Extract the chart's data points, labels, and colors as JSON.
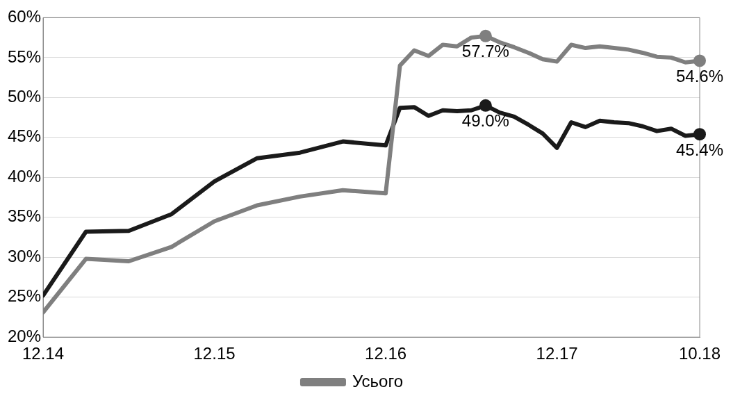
{
  "chart_data": {
    "type": "line",
    "x": [
      "2014-12",
      "2015-03",
      "2015-06",
      "2015-09",
      "2015-12",
      "2016-03",
      "2016-06",
      "2016-09",
      "2016-12",
      "2017-01",
      "2017-02",
      "2017-03",
      "2017-04",
      "2017-05",
      "2017-06",
      "2017-07",
      "2017-08",
      "2017-09",
      "2017-10",
      "2017-11",
      "2017-12",
      "2018-01",
      "2018-02",
      "2018-03",
      "2018-04",
      "2018-05",
      "2018-06",
      "2018-07",
      "2018-08",
      "2018-09",
      "2018-10"
    ],
    "series": [
      {
        "name": "Усього",
        "color": "#7f7f7f",
        "values": [
          23.1,
          29.8,
          29.5,
          31.3,
          34.5,
          36.5,
          37.6,
          38.4,
          38.0,
          54.0,
          55.9,
          55.2,
          56.6,
          56.4,
          57.5,
          57.7,
          56.9,
          56.3,
          55.6,
          54.8,
          54.5,
          56.6,
          56.2,
          56.4,
          56.2,
          56.0,
          55.6,
          55.1,
          55.0,
          54.4,
          54.6
        ]
      },
      {
        "color": "#1a1a1a",
        "values": [
          25.2,
          33.2,
          33.3,
          35.4,
          39.5,
          42.4,
          43.1,
          44.5,
          44.0,
          48.7,
          48.8,
          47.7,
          48.4,
          48.3,
          48.4,
          49.0,
          48.1,
          47.6,
          46.6,
          45.5,
          43.7,
          46.9,
          46.3,
          47.1,
          46.9,
          46.8,
          46.4,
          45.8,
          46.1,
          45.2,
          45.4
        ]
      }
    ],
    "xlim": [
      "2014-12",
      "2018-10"
    ],
    "xticks": [
      {
        "value": "2014-12",
        "label": "12.14"
      },
      {
        "value": "2015-12",
        "label": "12.15"
      },
      {
        "value": "2016-12",
        "label": "12.16"
      },
      {
        "value": "2017-12",
        "label": "12.17"
      },
      {
        "value": "2018-10",
        "label": "10.18"
      }
    ],
    "ylim": [
      20,
      60
    ],
    "yticks": [
      {
        "value": 20,
        "label": "20%"
      },
      {
        "value": 25,
        "label": "25%"
      },
      {
        "value": 30,
        "label": "30%"
      },
      {
        "value": 35,
        "label": "35%"
      },
      {
        "value": 40,
        "label": "40%"
      },
      {
        "value": 45,
        "label": "45%"
      },
      {
        "value": 50,
        "label": "50%"
      },
      {
        "value": 55,
        "label": "55%"
      },
      {
        "value": 60,
        "label": "60%"
      }
    ],
    "grid": "y",
    "legend": "bottom",
    "marker": "none",
    "line_style": "solid",
    "annotations": [
      {
        "text": "57.7%",
        "x": "2017-07",
        "y": 57.7
      },
      {
        "text": "54.6%",
        "x": "2018-10",
        "y": 54.6
      },
      {
        "text": "49.0%",
        "x": "2017-07",
        "y": 49.0
      },
      {
        "text": "45.4%",
        "x": "2018-10",
        "y": 45.4
      }
    ]
  }
}
